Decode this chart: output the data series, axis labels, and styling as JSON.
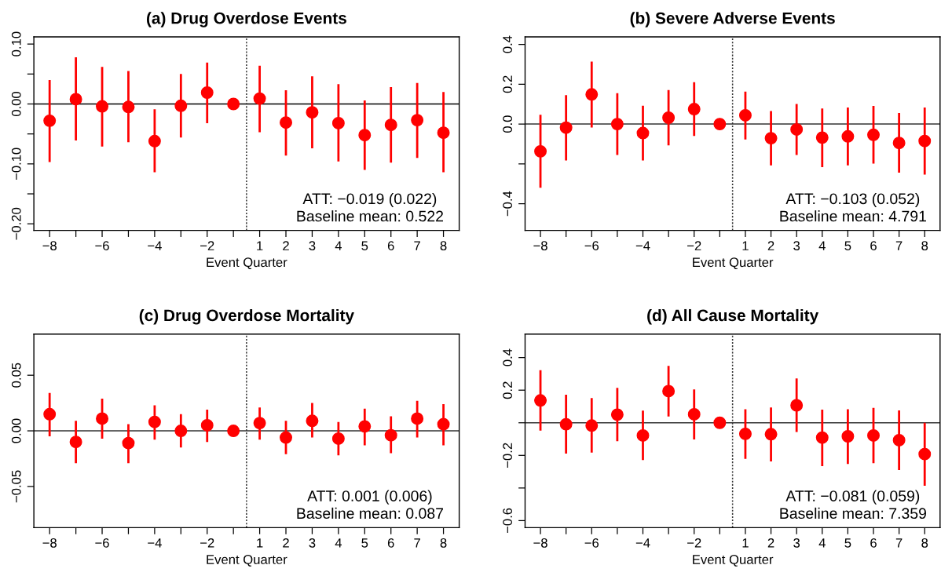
{
  "chart_data": [
    {
      "type": "scatter",
      "title": "(a) Drug Overdose Events",
      "xlabel": "Event Quarter",
      "color": "#ff0000",
      "marker": "circle",
      "categories": [
        "−8",
        null,
        "−6",
        null,
        "−4",
        null,
        "−2",
        null,
        "1",
        "2",
        "3",
        "4",
        "5",
        "6",
        "7",
        "8"
      ],
      "values": [
        -0.028,
        0.008,
        -0.004,
        -0.005,
        -0.062,
        -0.003,
        0.019,
        0,
        0.009,
        -0.031,
        -0.014,
        -0.032,
        -0.052,
        -0.035,
        -0.027,
        -0.048
      ],
      "errors": [
        [
          -0.097,
          0.04
        ],
        [
          -0.061,
          0.078
        ],
        [
          -0.071,
          0.062
        ],
        [
          -0.064,
          0.055
        ],
        [
          -0.114,
          -0.009
        ],
        [
          -0.056,
          0.05
        ],
        [
          -0.032,
          0.069
        ],
        null,
        [
          -0.047,
          0.064
        ],
        [
          -0.086,
          0.023
        ],
        [
          -0.074,
          0.046
        ],
        [
          -0.096,
          0.033
        ],
        [
          -0.11,
          0.006
        ],
        [
          -0.098,
          0.028
        ],
        [
          -0.09,
          0.035
        ],
        [
          -0.114,
          0.02
        ]
      ],
      "ylim": [
        -0.211,
        0.112
      ],
      "yticks": [
        {
          "value": -0.2,
          "label": "−0.20"
        },
        {
          "value": -0.15,
          "label": null
        },
        {
          "value": -0.1,
          "label": "−0.10"
        },
        {
          "value": -0.05,
          "label": null
        },
        {
          "value": 0,
          "label": "0.00"
        },
        {
          "value": 0.05,
          "label": null
        },
        {
          "value": 0.1,
          "label": "0.10"
        }
      ],
      "ref_lines": [
        {
          "axis": "y",
          "value": 0,
          "color": "#000000",
          "line_style": "solid"
        }
      ],
      "annotations": [
        "ATT: −0.019 (0.022)",
        "Baseline mean: 0.522"
      ]
    },
    {
      "type": "scatter",
      "title": "(b) Severe Adverse Events",
      "xlabel": "Event Quarter",
      "color": "#ff0000",
      "marker": "circle",
      "categories": [
        "−8",
        null,
        "−6",
        null,
        "−4",
        null,
        "−2",
        null,
        "1",
        "2",
        "3",
        "4",
        "5",
        "6",
        "7",
        "8"
      ],
      "values": [
        -0.137,
        -0.018,
        0.149,
        0.0,
        -0.045,
        0.032,
        0.075,
        0,
        0.044,
        -0.071,
        -0.027,
        -0.068,
        -0.062,
        -0.054,
        -0.095,
        -0.085
      ],
      "errors": [
        [
          -0.32,
          0.047
        ],
        [
          -0.183,
          0.145
        ],
        [
          -0.017,
          0.314
        ],
        [
          -0.155,
          0.155
        ],
        [
          -0.183,
          0.092
        ],
        [
          -0.107,
          0.171
        ],
        [
          -0.06,
          0.21
        ],
        null,
        [
          -0.077,
          0.163
        ],
        [
          -0.207,
          0.065
        ],
        [
          -0.155,
          0.101
        ],
        [
          -0.216,
          0.078
        ],
        [
          -0.207,
          0.083
        ],
        [
          -0.199,
          0.091
        ],
        [
          -0.244,
          0.056
        ],
        [
          -0.254,
          0.083
        ]
      ],
      "ylim": [
        -0.534,
        0.438
      ],
      "yticks": [
        {
          "value": -0.4,
          "label": "−0.4"
        },
        {
          "value": -0.2,
          "label": null
        },
        {
          "value": 0,
          "label": "0.0"
        },
        {
          "value": 0.2,
          "label": "0.2"
        },
        {
          "value": 0.4,
          "label": "0.4"
        }
      ],
      "ref_lines": [
        {
          "axis": "y",
          "value": 0,
          "color": "#333333",
          "line_style": "solid"
        }
      ],
      "annotations": [
        "ATT: −0.103 (0.052)",
        "Baseline mean: 4.791"
      ]
    },
    {
      "type": "scatter",
      "title": "(c) Drug Overdose Mortality",
      "xlabel": "Event Quarter",
      "color": "#ff0000",
      "marker": "circle",
      "categories": [
        "−8",
        null,
        "−6",
        null,
        "−4",
        null,
        "−2",
        null,
        "1",
        "2",
        "3",
        "4",
        "5",
        "6",
        "7",
        "8"
      ],
      "values": [
        0.015,
        -0.01,
        0.011,
        -0.011,
        0.008,
        0.0,
        0.005,
        0,
        0.007,
        -0.006,
        0.009,
        -0.007,
        0.004,
        -0.004,
        0.011,
        0.006
      ],
      "errors": [
        [
          -0.005,
          0.034
        ],
        [
          -0.029,
          0.009
        ],
        [
          -0.007,
          0.029
        ],
        [
          -0.029,
          0.006
        ],
        [
          -0.008,
          0.023
        ],
        [
          -0.015,
          0.015
        ],
        [
          -0.01,
          0.019
        ],
        null,
        [
          -0.008,
          0.021
        ],
        [
          -0.021,
          0.009
        ],
        [
          -0.006,
          0.025
        ],
        [
          -0.022,
          0.008
        ],
        [
          -0.013,
          0.02
        ],
        [
          -0.02,
          0.013
        ],
        [
          -0.006,
          0.027
        ],
        [
          -0.013,
          0.024
        ]
      ],
      "ylim": [
        -0.087,
        0.087
      ],
      "yticks": [
        {
          "value": -0.05,
          "label": "−0.05"
        },
        {
          "value": 0,
          "label": "0.00"
        },
        {
          "value": 0.05,
          "label": "0.05"
        }
      ],
      "ref_lines": [
        {
          "axis": "y",
          "value": 0,
          "color": "#333333",
          "line_style": "solid"
        }
      ],
      "annotations": [
        "ATT: 0.001 (0.006)",
        "Baseline mean: 0.087"
      ]
    },
    {
      "type": "scatter",
      "title": "(d) All Cause Mortality",
      "xlabel": "Event Quarter",
      "color": "#ff0000",
      "marker": "circle",
      "categories": [
        "−8",
        null,
        "−6",
        null,
        "−4",
        null,
        "−2",
        null,
        "1",
        "2",
        "3",
        "4",
        "5",
        "6",
        "7",
        "8"
      ],
      "values": [
        0.137,
        -0.009,
        -0.017,
        0.05,
        -0.078,
        0.194,
        0.052,
        0,
        -0.068,
        -0.07,
        0.107,
        -0.091,
        -0.083,
        -0.078,
        -0.107,
        -0.192
      ],
      "errors": [
        [
          -0.048,
          0.323
        ],
        [
          -0.189,
          0.172
        ],
        [
          -0.183,
          0.152
        ],
        [
          -0.113,
          0.214
        ],
        [
          -0.229,
          0.074
        ],
        [
          0.039,
          0.349
        ],
        [
          -0.102,
          0.205
        ],
        null,
        [
          -0.222,
          0.083
        ],
        [
          -0.237,
          0.094
        ],
        [
          -0.057,
          0.272
        ],
        [
          -0.266,
          0.081
        ],
        [
          -0.253,
          0.083
        ],
        [
          -0.248,
          0.091
        ],
        [
          -0.29,
          0.076
        ],
        [
          -0.386,
          0.0
        ]
      ],
      "ylim": [
        -0.643,
        0.544
      ],
      "yticks": [
        {
          "value": -0.6,
          "label": "−0.6"
        },
        {
          "value": -0.4,
          "label": null
        },
        {
          "value": -0.2,
          "label": "−0.2"
        },
        {
          "value": 0,
          "label": null
        },
        {
          "value": 0.2,
          "label": "0.2"
        },
        {
          "value": 0.4,
          "label": "0.4"
        }
      ],
      "ref_lines": [
        {
          "axis": "y",
          "value": 0,
          "color": "#333333",
          "line_style": "solid"
        }
      ],
      "annotations": [
        "ATT: −0.081 (0.059)",
        "Baseline mean: 7.359"
      ]
    }
  ]
}
